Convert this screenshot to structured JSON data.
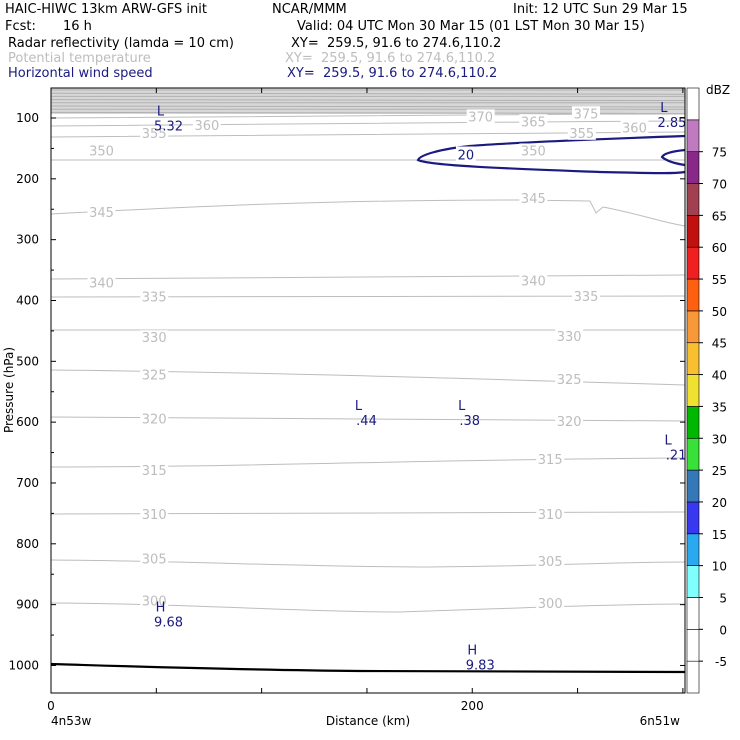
{
  "header": {
    "model": "HAIC-HIWC 13km ARW-GFS init",
    "org": "NCAR/MMM",
    "init": "Init: 12 UTC Sun 29 Mar 15",
    "fcst_label": "Fcst:",
    "fcst_value": "16 h",
    "valid": "Valid: 04 UTC Mon 30 Mar 15 (01 LST Mon 30 Mar 15)",
    "fields": [
      {
        "name": "Radar reflectivity (lamda = 10 cm)",
        "xy": "XY=  259.5, 91.6 to 274.6,110.2",
        "color": "#000000"
      },
      {
        "name": "Potential temperature",
        "xy": "XY=  259.5, 91.6 to 274.6,110.2",
        "color": "#bdbdbd"
      },
      {
        "name": "Horizontal wind speed",
        "xy": "XY=  259.5, 91.6 to 274.6,110.2",
        "color": "#1a1a80"
      }
    ]
  },
  "chart_data": {
    "type": "cross-section",
    "ylabel": "Pressure (hPa)",
    "xlabel": "Distance (km)",
    "x_start_label": "4n53w",
    "x_end_label": "6n51w",
    "xlim": [
      0,
      301
    ],
    "ylim": [
      1050,
      60
    ],
    "x_ticks": [
      0,
      200
    ],
    "y_ticks": [
      100,
      200,
      300,
      400,
      500,
      600,
      700,
      800,
      900,
      1000
    ],
    "theta_contour_labels": [
      {
        "label": "375",
        "x": 254,
        "p": 94
      },
      {
        "label": "370",
        "x": 204,
        "p": 99
      },
      {
        "label": "365",
        "x": 229,
        "p": 107
      },
      {
        "label": "360",
        "x": 74,
        "p": 113
      },
      {
        "label": "360",
        "x": 277,
        "p": 117
      },
      {
        "label": "355",
        "x": 49,
        "p": 126
      },
      {
        "label": "355",
        "x": 252,
        "p": 126
      },
      {
        "label": "350",
        "x": 24,
        "p": 155
      },
      {
        "label": "350",
        "x": 229,
        "p": 155
      },
      {
        "label": "345",
        "x": 24,
        "p": 256
      },
      {
        "label": "345",
        "x": 229,
        "p": 233
      },
      {
        "label": "340",
        "x": 24,
        "p": 372
      },
      {
        "label": "340",
        "x": 229,
        "p": 369
      },
      {
        "label": "335",
        "x": 49,
        "p": 395
      },
      {
        "label": "335",
        "x": 254,
        "p": 394
      },
      {
        "label": "330",
        "x": 49,
        "p": 462
      },
      {
        "label": "330",
        "x": 246,
        "p": 460
      },
      {
        "label": "325",
        "x": 49,
        "p": 523
      },
      {
        "label": "325",
        "x": 246,
        "p": 531
      },
      {
        "label": "320",
        "x": 49,
        "p": 596
      },
      {
        "label": "320",
        "x": 246,
        "p": 600
      },
      {
        "label": "315",
        "x": 49,
        "p": 680
      },
      {
        "label": "315",
        "x": 237,
        "p": 662
      },
      {
        "label": "310",
        "x": 49,
        "p": 753
      },
      {
        "label": "310",
        "x": 237,
        "p": 753
      },
      {
        "label": "305",
        "x": 49,
        "p": 826
      },
      {
        "label": "305",
        "x": 237,
        "p": 830
      },
      {
        "label": "300",
        "x": 49,
        "p": 895
      },
      {
        "label": "300",
        "x": 237,
        "p": 899
      }
    ],
    "wind_contour_labels": [
      {
        "label": "20",
        "x": 197,
        "p": 160
      }
    ],
    "extrema": [
      {
        "letter": "L",
        "value": "5.32",
        "x": 52,
        "p": 96
      },
      {
        "letter": "L",
        "value": "2.85",
        "x": 291,
        "p": 90
      },
      {
        "letter": "L",
        "value": ".44",
        "x": 146,
        "p": 580
      },
      {
        "letter": "L",
        "value": ".38",
        "x": 195,
        "p": 580
      },
      {
        "letter": "L",
        "value": ".21",
        "x": 293,
        "p": 637
      },
      {
        "letter": "H",
        "value": "9.68",
        "x": 52,
        "p": 911
      },
      {
        "letter": "H",
        "value": "9.83",
        "x": 200,
        "p": 982
      }
    ],
    "colorbar": {
      "unit": "dBZ",
      "labels": [
        "-5",
        "0",
        "5",
        "10",
        "15",
        "20",
        "25",
        "30",
        "35",
        "40",
        "45",
        "50",
        "55",
        "60",
        "65",
        "70",
        "75"
      ],
      "colors": [
        "#ffffff",
        "#ffffff",
        "#ffffff",
        "#80ffff",
        "#2aa8f0",
        "#3838f0",
        "#3478b8",
        "#38e038",
        "#00b800",
        "#f0e030",
        "#f8c030",
        "#f89838",
        "#ff6010",
        "#f02020",
        "#c01010",
        "#a04050",
        "#882888",
        "#c07ac0",
        "#ffffff"
      ]
    }
  }
}
